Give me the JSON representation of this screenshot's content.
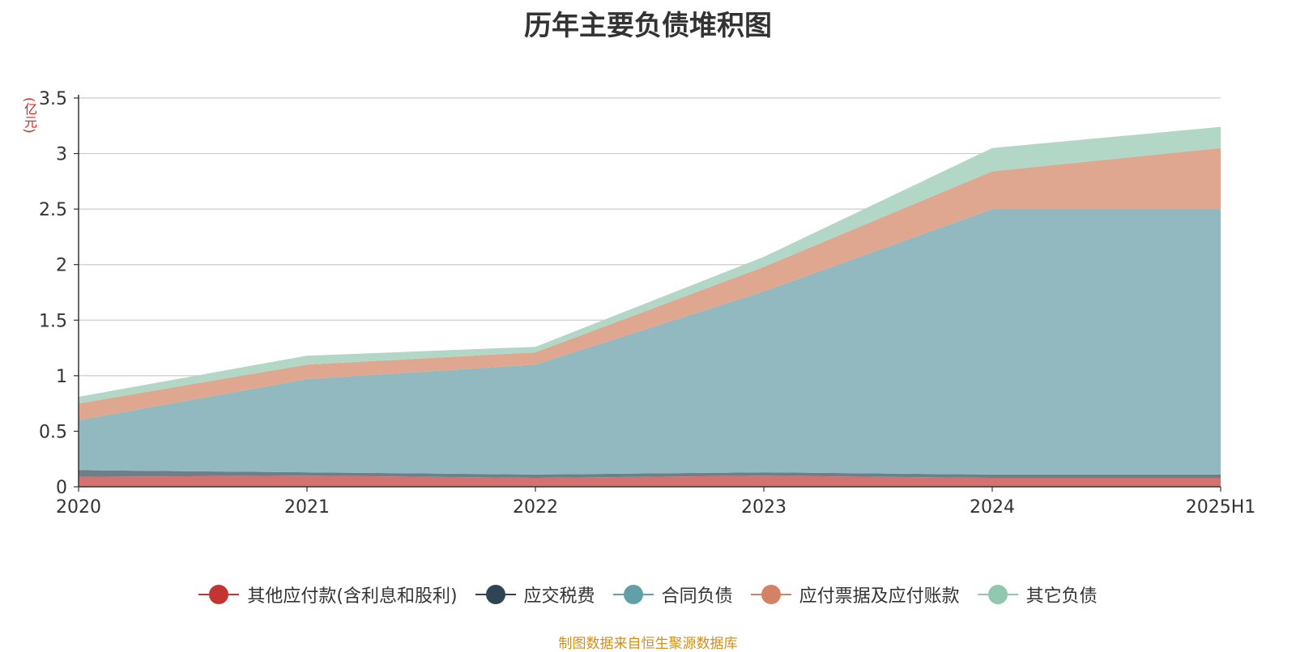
{
  "chart_data": {
    "type": "area",
    "title": "历年主要负债堆积图",
    "unit_label": "(亿元)",
    "source": "制图数据来自恒生聚源数据库",
    "x": [
      "2020",
      "2021",
      "2022",
      "2023",
      "2024",
      "2025H1"
    ],
    "ylim": [
      0,
      3.5
    ],
    "yticks": [
      "0",
      "0.5",
      "1",
      "1.5",
      "2",
      "2.5",
      "3",
      "3.5"
    ],
    "grid": true,
    "stacked": true,
    "legend_position": "bottom",
    "series": [
      {
        "name": "其他应付款(含利息和股利)",
        "color": "#c23531",
        "fill": "#d4726f",
        "values": [
          0.09,
          0.1,
          0.08,
          0.1,
          0.08,
          0.08
        ]
      },
      {
        "name": "应交税费",
        "color": "#2f4554",
        "fill": "#6e7f8a",
        "values": [
          0.06,
          0.03,
          0.03,
          0.03,
          0.03,
          0.03
        ]
      },
      {
        "name": "合同负债",
        "color": "#61a0a8",
        "fill": "#91b9bf",
        "values": [
          0.45,
          0.84,
          0.99,
          1.63,
          2.39,
          2.39
        ]
      },
      {
        "name": "应付票据及应付账款",
        "color": "#d48265",
        "fill": "#dfa690",
        "values": [
          0.15,
          0.13,
          0.11,
          0.22,
          0.34,
          0.55
        ]
      },
      {
        "name": "其它负债",
        "color": "#91c7ae",
        "fill": "#b3d7c6",
        "values": [
          0.06,
          0.08,
          0.05,
          0.09,
          0.21,
          0.19
        ]
      }
    ]
  }
}
